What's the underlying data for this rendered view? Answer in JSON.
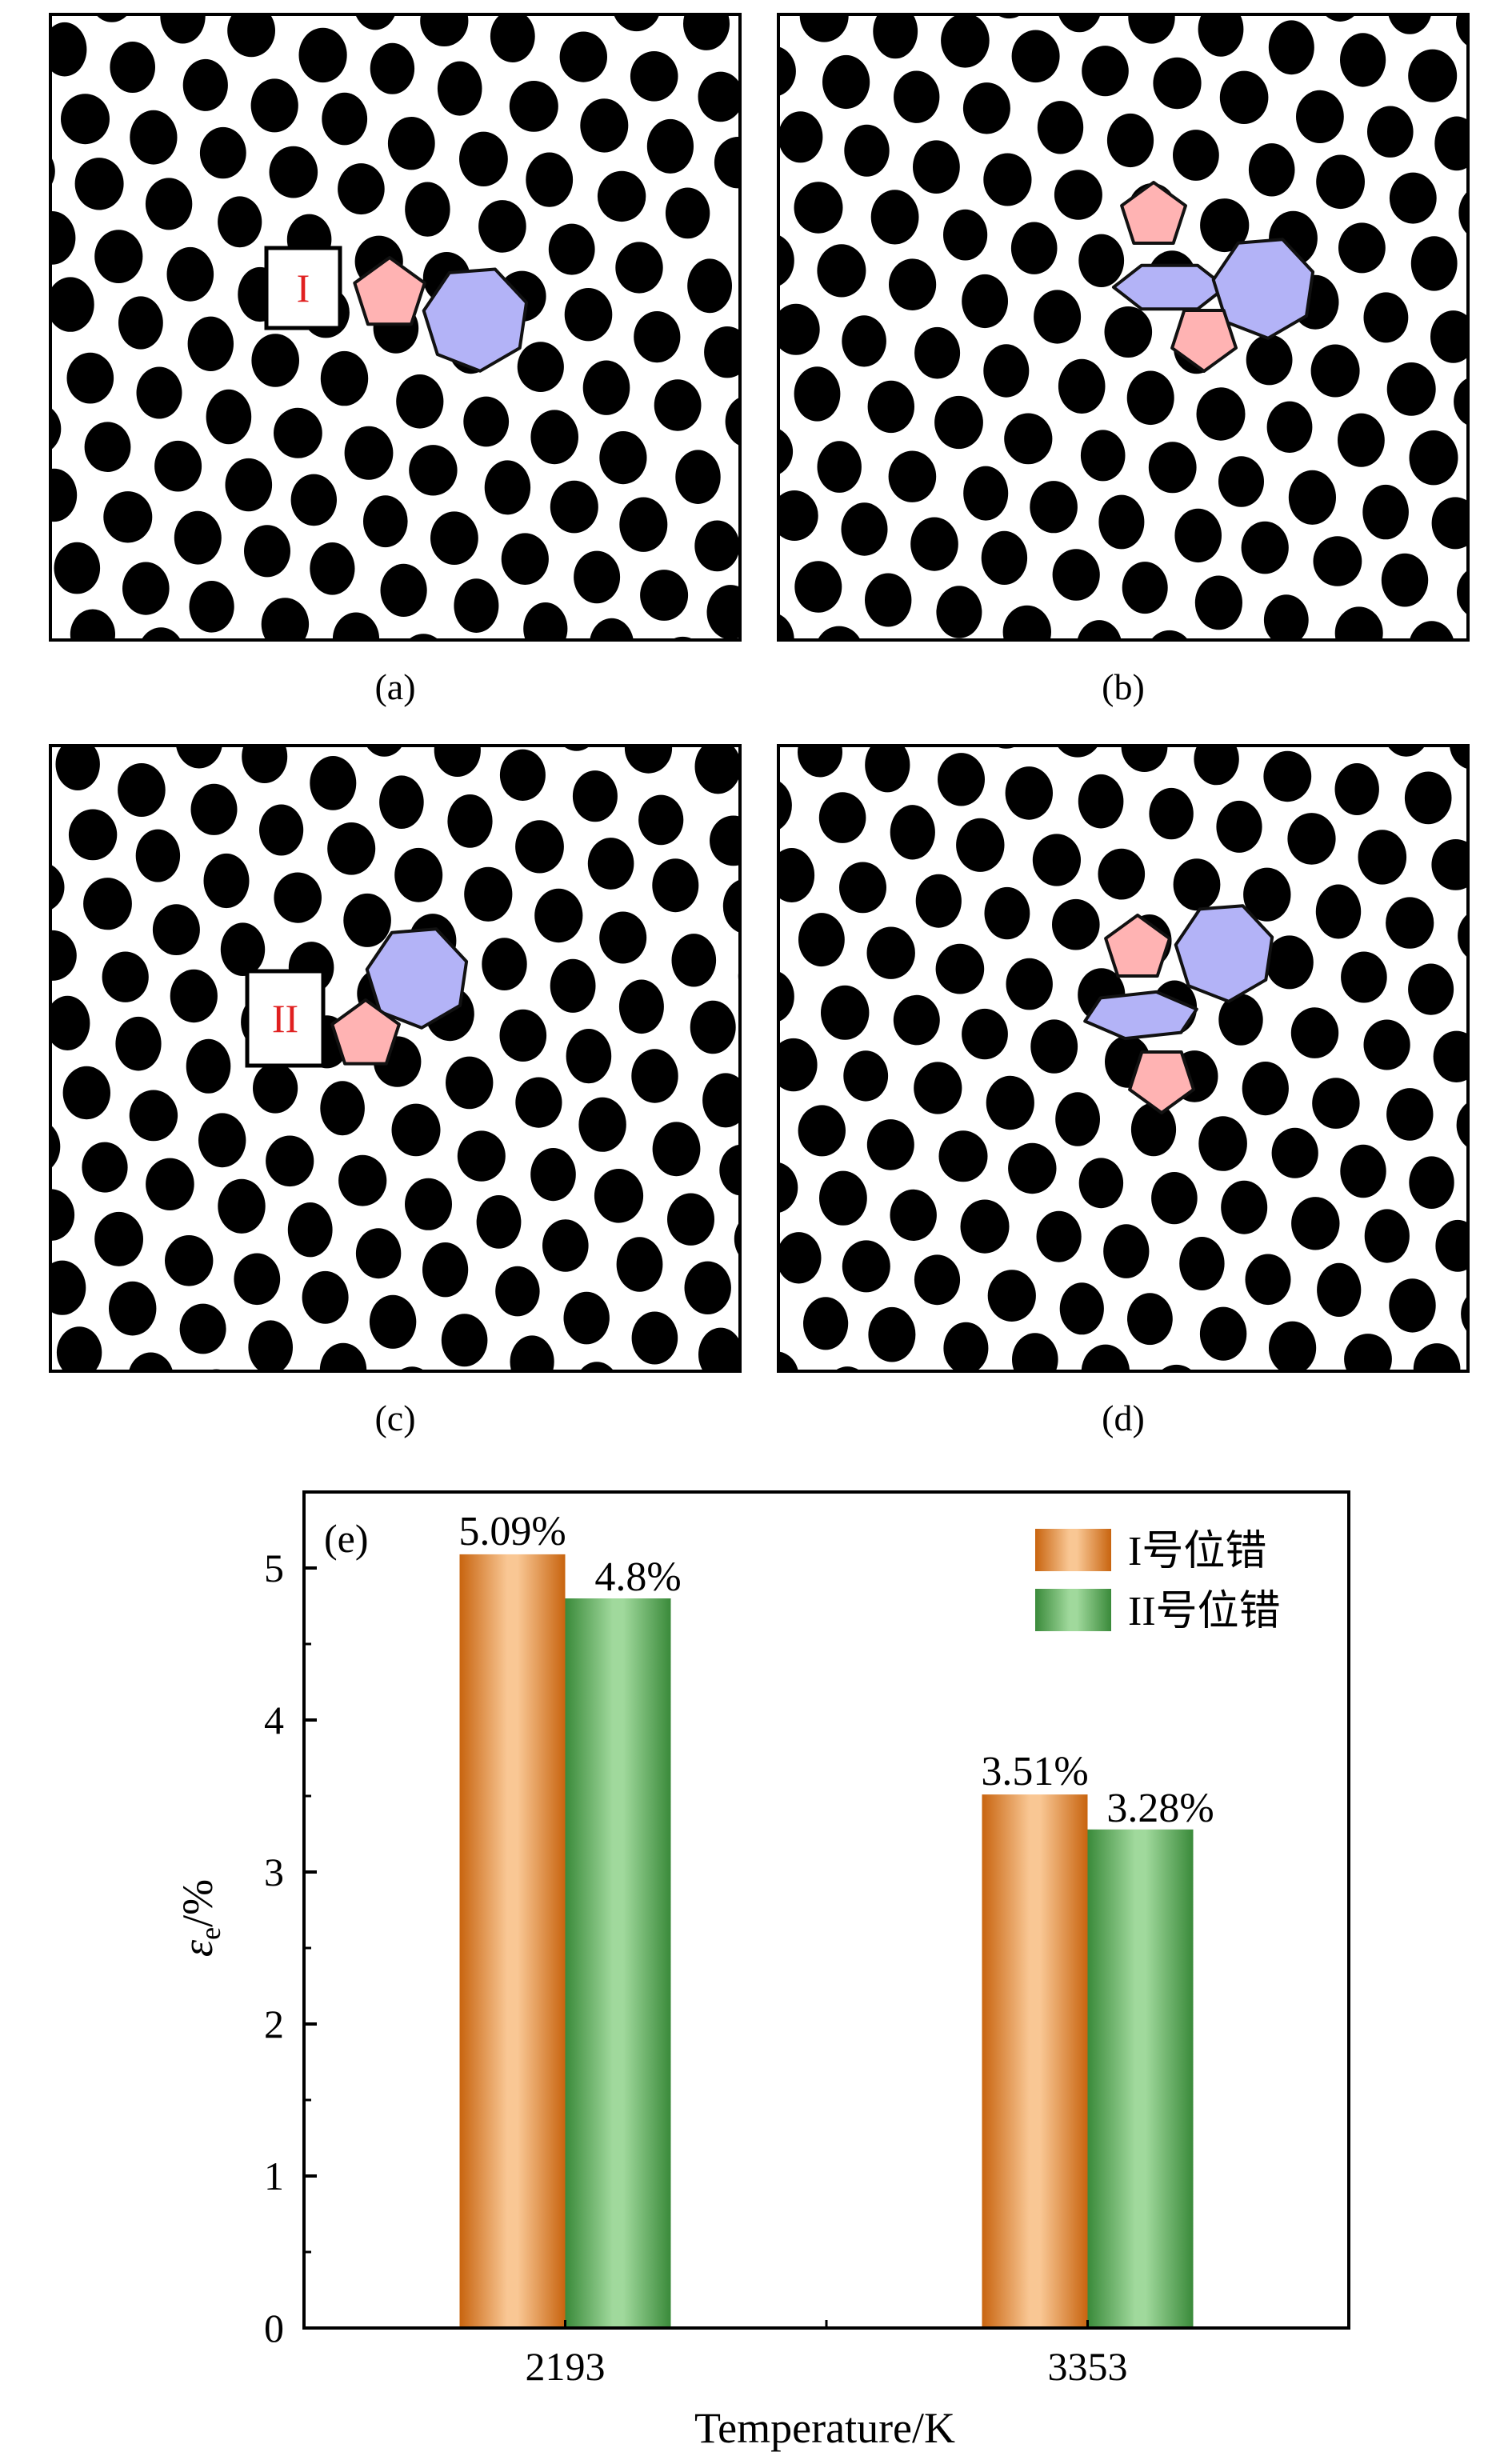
{
  "panels": [
    {
      "label": "(a)",
      "marker": "I"
    },
    {
      "label": "(b)",
      "marker": ""
    },
    {
      "label": "(c)",
      "marker": "II"
    },
    {
      "label": "(d)",
      "marker": ""
    }
  ],
  "colors": {
    "pentagon_fill": "#ffb3b3",
    "heptagon_fill": "#b3b3f7",
    "marker_text": "#e02020",
    "series1_edge": "#c8640f",
    "series1_center": "#f9c794",
    "series2_edge": "#3a8a3a",
    "series2_center": "#a0d99c"
  },
  "chart_data": {
    "type": "bar",
    "panel_label": "(e)",
    "categories": [
      "2193",
      "3353"
    ],
    "series": [
      {
        "name": "I号位错",
        "values": [
          5.09,
          3.51
        ],
        "data_labels": [
          "5.09%",
          "3.51%"
        ]
      },
      {
        "name": "II号位错",
        "values": [
          4.8,
          3.28
        ],
        "data_labels": [
          "4.8%",
          "3.28%"
        ]
      }
    ],
    "xlabel": "Temperature/K",
    "ylabel_main": "ε",
    "ylabel_sub": "e",
    "ylabel_unit": "/%",
    "ylim": [
      0,
      5.5
    ],
    "yticks": [
      "0",
      "1",
      "2",
      "3",
      "4",
      "5"
    ],
    "legend_position": "top-right",
    "grid": false
  }
}
